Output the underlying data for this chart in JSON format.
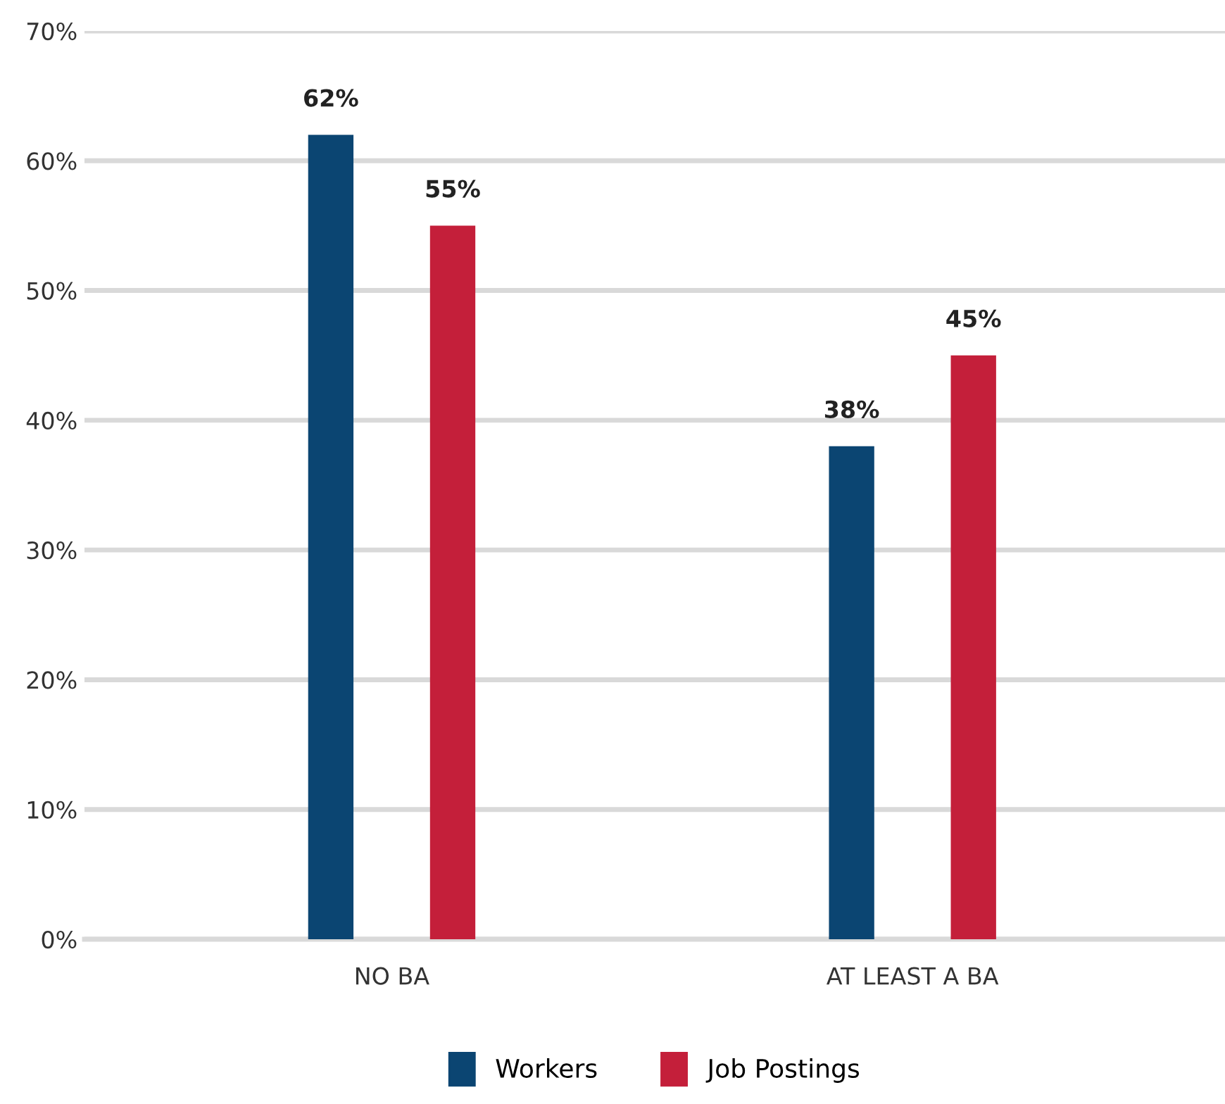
{
  "chart_data": {
    "type": "bar",
    "categories": [
      "NO BA",
      "AT LEAST A BA"
    ],
    "series": [
      {
        "name": "Workers",
        "color": "#0b4572",
        "values": [
          62,
          38
        ],
        "value_labels": [
          "62%",
          "38%"
        ]
      },
      {
        "name": "Job Postings",
        "color": "#c41f3a",
        "values": [
          55,
          45
        ],
        "value_labels": [
          "55%",
          "45%"
        ]
      }
    ],
    "ylim": [
      0,
      70
    ],
    "yticks": [
      {
        "value": 0,
        "label": "0%"
      },
      {
        "value": 10,
        "label": "10%"
      },
      {
        "value": 20,
        "label": "20%"
      },
      {
        "value": 30,
        "label": "30%"
      },
      {
        "value": 40,
        "label": "40%"
      },
      {
        "value": 50,
        "label": "50%"
      },
      {
        "value": 60,
        "label": "60%"
      },
      {
        "value": 70,
        "label": "70%"
      }
    ],
    "grid": "y",
    "legend": "bottom"
  }
}
